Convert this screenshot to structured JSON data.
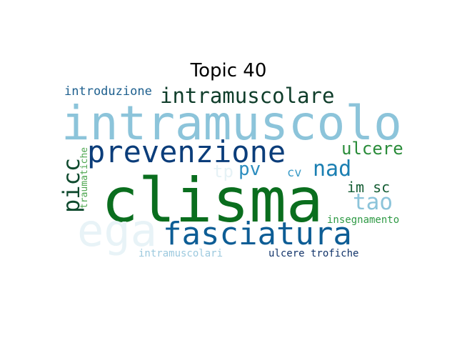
{
  "title": "Topic 40",
  "words": [
    {
      "text": "intramuscolo",
      "color": "#8cc4da"
    },
    {
      "text": "clisma",
      "color": "#0a6e1e"
    },
    {
      "text": "prevenzione",
      "color": "#0b3d7a"
    },
    {
      "text": "fasciatura",
      "color": "#0d5d95"
    },
    {
      "text": "intramuscolare",
      "color": "#0f3d2a"
    },
    {
      "text": "ega",
      "color": "#e8f3f7"
    },
    {
      "text": "picc",
      "color": "#0f4a2e"
    },
    {
      "text": "nad",
      "color": "#1b7fb2"
    },
    {
      "text": "tao",
      "color": "#8cc4da"
    },
    {
      "text": "pv",
      "color": "#2c8dbf"
    },
    {
      "text": "ulcere",
      "color": "#2a8c3a"
    },
    {
      "text": "im sc",
      "color": "#155d34"
    },
    {
      "text": "introduzione",
      "color": "#1d5f8e"
    },
    {
      "text": "cv",
      "color": "#3c9cc8"
    },
    {
      "text": "tp",
      "color": "#e6f2f6"
    },
    {
      "text": "traumatiche",
      "color": "#4da64f"
    },
    {
      "text": "intramuscolari",
      "color": "#9cc9de"
    },
    {
      "text": "ulcere trofiche",
      "color": "#12346a"
    },
    {
      "text": "insegnamento",
      "color": "#2f9a45"
    }
  ]
}
